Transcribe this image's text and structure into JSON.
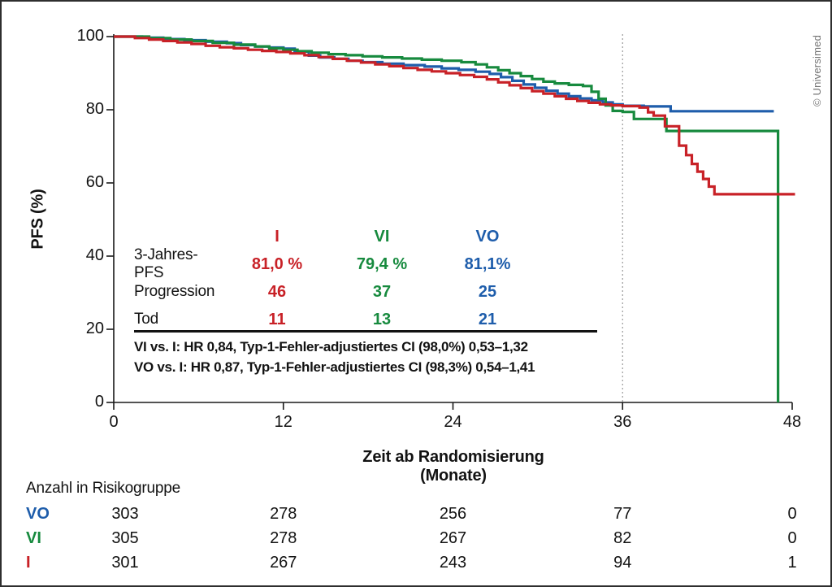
{
  "copyright": "© Universimed",
  "chart_data": {
    "type": "line",
    "subtype": "kaplan-meier-step",
    "title": "",
    "xlabel": "Zeit ab Randomisierung (Monate)",
    "ylabel": "PFS (%)",
    "xlim": [
      0,
      48
    ],
    "ylim": [
      0,
      100
    ],
    "xticks": [
      0,
      12,
      24,
      36,
      48
    ],
    "yticks": [
      0,
      20,
      40,
      60,
      80,
      100
    ],
    "grid": false,
    "reference_line_x": 36,
    "axis_color": "#1a1a1a",
    "ref_line_color": "#9a9a9a",
    "series": [
      {
        "name": "VO",
        "color": "#1e5dab",
        "points": [
          [
            0,
            100
          ],
          [
            2,
            99.7
          ],
          [
            3.5,
            99.3
          ],
          [
            5,
            99
          ],
          [
            6.5,
            98.6
          ],
          [
            8,
            98.2
          ],
          [
            9,
            97.7
          ],
          [
            10,
            97.3
          ],
          [
            11,
            97
          ],
          [
            12,
            96.7
          ],
          [
            12.8,
            95.9
          ],
          [
            13.8,
            94.8
          ],
          [
            14.6,
            94.3
          ],
          [
            15.6,
            93.9
          ],
          [
            16.6,
            93.4
          ],
          [
            17.6,
            93
          ],
          [
            19,
            92.6
          ],
          [
            20.5,
            92.2
          ],
          [
            22,
            91.8
          ],
          [
            23.2,
            91.3
          ],
          [
            24.4,
            90.9
          ],
          [
            25.6,
            90.4
          ],
          [
            26.6,
            89.8
          ],
          [
            27.4,
            88.9
          ],
          [
            28.2,
            87.9
          ],
          [
            29,
            86.9
          ],
          [
            29.8,
            86
          ],
          [
            30.6,
            85.2
          ],
          [
            31.4,
            84.4
          ],
          [
            32.2,
            83.7
          ],
          [
            33,
            83.1
          ],
          [
            33.8,
            82.6
          ],
          [
            34.6,
            82
          ],
          [
            35.3,
            81.5
          ],
          [
            36,
            81.1
          ],
          [
            37.5,
            80.9
          ],
          [
            39.4,
            79.6
          ],
          [
            46.7,
            79.6
          ]
        ]
      },
      {
        "name": "VI",
        "color": "#178a3e",
        "points": [
          [
            0,
            100
          ],
          [
            2.5,
            99.6
          ],
          [
            4,
            99.2
          ],
          [
            5.5,
            98.8
          ],
          [
            7,
            98.3
          ],
          [
            8.5,
            97.8
          ],
          [
            10,
            97.3
          ],
          [
            11,
            96.8
          ],
          [
            12,
            96.4
          ],
          [
            13,
            96
          ],
          [
            14,
            95.6
          ],
          [
            15.2,
            95.2
          ],
          [
            16.4,
            94.9
          ],
          [
            17.6,
            94.6
          ],
          [
            19,
            94.3
          ],
          [
            20.4,
            94
          ],
          [
            21.8,
            93.7
          ],
          [
            23.2,
            93.4
          ],
          [
            24.6,
            93
          ],
          [
            25.6,
            92.4
          ],
          [
            26.4,
            91.6
          ],
          [
            27.2,
            90.8
          ],
          [
            28,
            90
          ],
          [
            28.8,
            89.2
          ],
          [
            29.6,
            88.4
          ],
          [
            30.4,
            87.7
          ],
          [
            31.2,
            87.2
          ],
          [
            32.2,
            86.8
          ],
          [
            33.2,
            86.5
          ],
          [
            33.8,
            84.9
          ],
          [
            34.3,
            83
          ],
          [
            34.8,
            81.2
          ],
          [
            35.3,
            79.7
          ],
          [
            36,
            79.4
          ],
          [
            36.8,
            77.5
          ],
          [
            39.1,
            74.2
          ],
          [
            47,
            74.2
          ],
          [
            47,
            0
          ]
        ]
      },
      {
        "name": "I",
        "color": "#c82127",
        "points": [
          [
            0,
            100
          ],
          [
            1.5,
            99.6
          ],
          [
            2.5,
            99.2
          ],
          [
            3.5,
            98.8
          ],
          [
            4.5,
            98.4
          ],
          [
            5.5,
            98
          ],
          [
            6.5,
            97.5
          ],
          [
            7.5,
            97.1
          ],
          [
            8.5,
            96.8
          ],
          [
            9.5,
            96.4
          ],
          [
            10.5,
            96.1
          ],
          [
            11.5,
            95.8
          ],
          [
            12.5,
            95.4
          ],
          [
            13.5,
            94.9
          ],
          [
            14.5,
            94.4
          ],
          [
            15.5,
            93.9
          ],
          [
            16.5,
            93.4
          ],
          [
            17.5,
            92.9
          ],
          [
            18.5,
            92.4
          ],
          [
            19.5,
            91.9
          ],
          [
            20.5,
            91.4
          ],
          [
            21.5,
            90.9
          ],
          [
            22.5,
            90.5
          ],
          [
            23.5,
            90
          ],
          [
            24.5,
            89.5
          ],
          [
            25.5,
            89
          ],
          [
            26.4,
            88.3
          ],
          [
            27.2,
            87.5
          ],
          [
            28,
            86.7
          ],
          [
            28.8,
            85.9
          ],
          [
            29.6,
            85.1
          ],
          [
            30.4,
            84.4
          ],
          [
            31.2,
            83.7
          ],
          [
            32,
            83
          ],
          [
            32.8,
            82.4
          ],
          [
            33.6,
            81.9
          ],
          [
            34.4,
            81.5
          ],
          [
            35.2,
            81.2
          ],
          [
            36,
            81
          ],
          [
            37.2,
            80.6
          ],
          [
            37.8,
            79.3
          ],
          [
            38.2,
            78.4
          ],
          [
            39,
            75.5
          ],
          [
            40,
            70.2
          ],
          [
            40.5,
            67.6
          ],
          [
            40.9,
            65.2
          ],
          [
            41.3,
            63.1
          ],
          [
            41.7,
            61.1
          ],
          [
            42.1,
            59
          ],
          [
            42.5,
            56.9
          ],
          [
            48.2,
            56.9
          ]
        ]
      }
    ]
  },
  "stats_table": {
    "columns": [
      {
        "label": "I",
        "color": "#c82127"
      },
      {
        "label": "VI",
        "color": "#178a3e"
      },
      {
        "label": "VO",
        "color": "#1e5dab"
      }
    ],
    "rows": [
      {
        "label": "3-Jahres-PFS",
        "values": [
          "81,0 %",
          "79,4 %",
          "81,1%"
        ]
      },
      {
        "label": "Progression",
        "values": [
          "46",
          "37",
          "25"
        ]
      },
      {
        "label": "Tod",
        "values": [
          "11",
          "13",
          "21"
        ]
      }
    ],
    "footnotes": [
      "VI vs. I: HR 0,84, Typ-1-Fehler-adjustiertes CI (98,0%) 0,53–1,32",
      "VO vs. I: HR 0,87, Typ-1-Fehler-adjustiertes CI (98,3%) 0,54–1,41"
    ]
  },
  "risk_table": {
    "title": "Anzahl in Risikogruppe",
    "times": [
      0,
      12,
      24,
      36,
      48
    ],
    "groups": [
      {
        "label": "VO",
        "color": "#1e5dab",
        "values": [
          "303",
          "278",
          "256",
          "77",
          "0"
        ]
      },
      {
        "label": "VI",
        "color": "#178a3e",
        "values": [
          "305",
          "278",
          "267",
          "82",
          "0"
        ]
      },
      {
        "label": "I",
        "color": "#c82127",
        "values": [
          "301",
          "267",
          "243",
          "94",
          "1"
        ]
      }
    ]
  }
}
